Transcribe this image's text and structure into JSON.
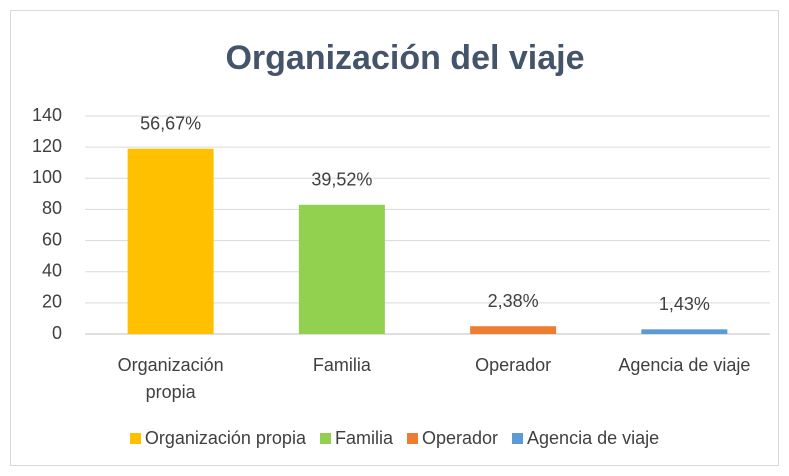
{
  "chart_data": {
    "type": "bar",
    "title": "Organización del viaje",
    "categories": [
      "Organización propia",
      "Familia",
      "Operador",
      "Agencia de viaje"
    ],
    "values": [
      119,
      83,
      5,
      3
    ],
    "percent_labels": [
      "56,67%",
      "39,52%",
      "2,38%",
      "1,43%"
    ],
    "colors": [
      "#ffc000",
      "#92d050",
      "#ed7d31",
      "#5b9bd5"
    ],
    "ylim": [
      0,
      140
    ],
    "yticks": [
      0,
      20,
      40,
      60,
      80,
      100,
      120,
      140
    ],
    "grid": true,
    "legend": "bottom"
  }
}
